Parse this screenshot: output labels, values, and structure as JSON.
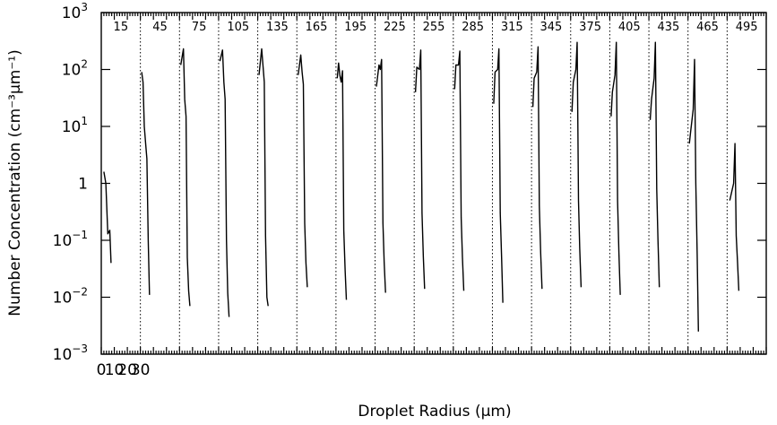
{
  "chart_data": {
    "type": "line",
    "xlabel": "Droplet Radius (μm)",
    "ylabel": "Number Concentration (cm⁻³μm⁻¹)",
    "yscale": "log",
    "ylim": [
      0.001,
      1000
    ],
    "y_ticks": [
      {
        "label": "10",
        "exp": "3"
      },
      {
        "label": "10",
        "exp": "2"
      },
      {
        "label": "10",
        "exp": "1"
      },
      {
        "label": "1",
        "exp": ""
      },
      {
        "label": "10",
        "exp": "−1"
      },
      {
        "label": "10",
        "exp": "−2"
      },
      {
        "label": "10",
        "exp": "−3"
      }
    ],
    "x_ticks": [
      "0",
      "10",
      "20",
      "30"
    ],
    "grid": false,
    "panel_width_um": 30,
    "panels": [
      {
        "label": "15",
        "x": [
          2,
          3.5,
          5,
          6.5,
          7.5
        ],
        "y": [
          1.6,
          1.0,
          0.13,
          0.15,
          0.04
        ]
      },
      {
        "label": "45",
        "x": [
          1,
          2,
          3,
          4,
          5,
          6,
          7
        ],
        "y": [
          90,
          60,
          10,
          5,
          2.7,
          0.1,
          0.011
        ]
      },
      {
        "label": "75",
        "x": [
          1,
          3,
          4,
          5,
          6,
          7,
          8
        ],
        "y": [
          120,
          230,
          30,
          15,
          0.05,
          0.013,
          0.007
        ]
      },
      {
        "label": "105",
        "x": [
          1,
          3,
          4,
          5,
          6,
          7,
          8
        ],
        "y": [
          140,
          220,
          60,
          30,
          0.1,
          0.012,
          0.0045
        ]
      },
      {
        "label": "135",
        "x": [
          1,
          3,
          4,
          5,
          6,
          7,
          8
        ],
        "y": [
          80,
          230,
          120,
          60,
          0.12,
          0.01,
          0.007
        ]
      },
      {
        "label": "165",
        "x": [
          1,
          3,
          4,
          5,
          6,
          7,
          8
        ],
        "y": [
          80,
          180,
          90,
          55,
          0.2,
          0.04,
          0.015
        ]
      },
      {
        "label": "195",
        "x": [
          1,
          2,
          3,
          4,
          5,
          6,
          7,
          8
        ],
        "y": [
          70,
          130,
          80,
          60,
          95,
          0.15,
          0.03,
          0.009
        ]
      },
      {
        "label": "225",
        "x": [
          1,
          3,
          4,
          5,
          6,
          7,
          8
        ],
        "y": [
          50,
          120,
          100,
          150,
          0.2,
          0.04,
          0.012
        ]
      },
      {
        "label": "255",
        "x": [
          1,
          2,
          4,
          5,
          6,
          7,
          8
        ],
        "y": [
          40,
          110,
          100,
          220,
          0.3,
          0.05,
          0.014
        ]
      },
      {
        "label": "285",
        "x": [
          1,
          2,
          4,
          5,
          6,
          7,
          8
        ],
        "y": [
          45,
          120,
          120,
          210,
          0.25,
          0.05,
          0.013
        ]
      },
      {
        "label": "315",
        "x": [
          1,
          2,
          4,
          5,
          6,
          7,
          8
        ],
        "y": [
          25,
          90,
          100,
          230,
          0.3,
          0.05,
          0.008
        ]
      },
      {
        "label": "345",
        "x": [
          1,
          2,
          4,
          5,
          6,
          7,
          8
        ],
        "y": [
          22,
          70,
          90,
          250,
          0.4,
          0.06,
          0.014
        ]
      },
      {
        "label": "375",
        "x": [
          1,
          2,
          4,
          5,
          6,
          7,
          8
        ],
        "y": [
          18,
          60,
          100,
          300,
          0.5,
          0.07,
          0.015
        ]
      },
      {
        "label": "405",
        "x": [
          1,
          2,
          4,
          5,
          6,
          7,
          8
        ],
        "y": [
          15,
          40,
          80,
          300,
          0.5,
          0.06,
          0.011
        ]
      },
      {
        "label": "435",
        "x": [
          1,
          2,
          4,
          5,
          6,
          7,
          8
        ],
        "y": [
          13,
          30,
          70,
          300,
          0.8,
          0.1,
          0.015
        ]
      },
      {
        "label": "465",
        "x": [
          1,
          2,
          4,
          5,
          6,
          7,
          8
        ],
        "y": [
          5,
          8,
          20,
          150,
          1.0,
          0.06,
          0.0025
        ]
      },
      {
        "label": "495",
        "x": [
          2,
          4,
          5,
          6,
          7,
          8,
          9
        ],
        "y": [
          0.5,
          0.8,
          1.0,
          5,
          0.12,
          0.04,
          0.013
        ]
      }
    ]
  }
}
